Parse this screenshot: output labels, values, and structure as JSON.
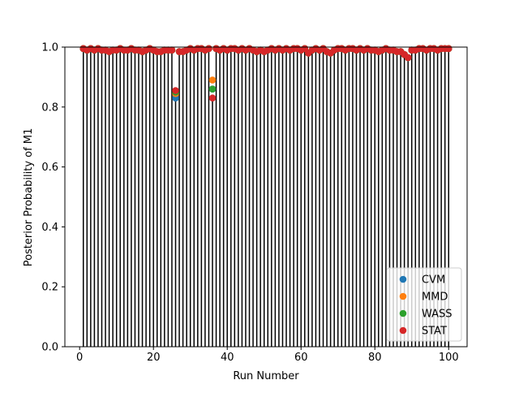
{
  "chart_data": {
    "type": "scatter",
    "xlabel": "Run Number",
    "ylabel": "Posterior Probability of M1",
    "xlim": [
      -4,
      105
    ],
    "ylim": [
      0.0,
      1.0
    ],
    "x_ticks": [
      0,
      20,
      40,
      60,
      80,
      100
    ],
    "y_ticks": [
      0.0,
      0.2,
      0.4,
      0.6,
      0.8,
      1.0
    ],
    "grid": false,
    "legend_position": "lower-right",
    "stems": "black vertical line from 0 to each run's value, one per run (1-100)",
    "x": [
      1,
      2,
      3,
      4,
      5,
      6,
      7,
      8,
      9,
      10,
      11,
      12,
      13,
      14,
      15,
      16,
      17,
      18,
      19,
      20,
      21,
      22,
      23,
      24,
      25,
      26,
      27,
      28,
      29,
      30,
      31,
      32,
      33,
      34,
      35,
      36,
      37,
      38,
      39,
      40,
      41,
      42,
      43,
      44,
      45,
      46,
      47,
      48,
      49,
      50,
      51,
      52,
      53,
      54,
      55,
      56,
      57,
      58,
      59,
      60,
      61,
      62,
      63,
      64,
      65,
      66,
      67,
      68,
      69,
      70,
      71,
      72,
      73,
      74,
      75,
      76,
      77,
      78,
      79,
      80,
      81,
      82,
      83,
      84,
      85,
      86,
      87,
      88,
      89,
      90,
      91,
      92,
      93,
      94,
      95,
      96,
      97,
      98,
      99,
      100
    ],
    "series": [
      {
        "name": "CVM",
        "color": "#1f77b4",
        "values": [
          0.995,
          0.99,
          0.995,
          0.99,
          0.995,
          0.99,
          0.99,
          0.985,
          0.99,
          0.99,
          0.995,
          0.99,
          0.99,
          0.995,
          0.99,
          0.99,
          0.985,
          0.99,
          0.995,
          0.99,
          0.985,
          0.985,
          0.99,
          0.99,
          0.99,
          0.83,
          0.985,
          0.985,
          0.99,
          0.995,
          0.99,
          0.995,
          0.995,
          0.99,
          0.995,
          0.86,
          0.995,
          0.99,
          0.995,
          0.99,
          0.995,
          0.995,
          0.99,
          0.995,
          0.99,
          0.995,
          0.99,
          0.985,
          0.99,
          0.985,
          0.99,
          0.995,
          0.99,
          0.995,
          0.99,
          0.995,
          0.99,
          0.995,
          0.995,
          0.99,
          0.995,
          0.98,
          0.99,
          0.995,
          0.99,
          0.995,
          0.985,
          0.98,
          0.99,
          0.995,
          0.995,
          0.99,
          0.995,
          0.995,
          0.99,
          0.995,
          0.99,
          0.995,
          0.99,
          0.99,
          0.985,
          0.99,
          0.995,
          0.99,
          0.99,
          0.985,
          0.985,
          0.975,
          0.965,
          0.99,
          0.99,
          0.995,
          0.995,
          0.99,
          0.995,
          0.995,
          0.99,
          0.995,
          0.995,
          0.995
        ]
      },
      {
        "name": "MMD",
        "color": "#ff7f0e",
        "values": [
          0.995,
          0.99,
          0.995,
          0.99,
          0.995,
          0.99,
          0.99,
          0.985,
          0.99,
          0.99,
          0.995,
          0.99,
          0.99,
          0.995,
          0.99,
          0.99,
          0.985,
          0.99,
          0.995,
          0.99,
          0.985,
          0.985,
          0.99,
          0.99,
          0.99,
          0.845,
          0.985,
          0.985,
          0.99,
          0.995,
          0.99,
          0.995,
          0.995,
          0.99,
          0.995,
          0.89,
          0.995,
          0.99,
          0.995,
          0.99,
          0.995,
          0.995,
          0.99,
          0.995,
          0.99,
          0.995,
          0.99,
          0.985,
          0.99,
          0.985,
          0.99,
          0.995,
          0.99,
          0.995,
          0.99,
          0.995,
          0.99,
          0.995,
          0.995,
          0.99,
          0.995,
          0.98,
          0.99,
          0.995,
          0.99,
          0.995,
          0.985,
          0.98,
          0.99,
          0.995,
          0.995,
          0.99,
          0.995,
          0.995,
          0.99,
          0.995,
          0.99,
          0.995,
          0.99,
          0.99,
          0.985,
          0.99,
          0.995,
          0.99,
          0.99,
          0.985,
          0.985,
          0.975,
          0.965,
          0.99,
          0.99,
          0.995,
          0.995,
          0.99,
          0.995,
          0.995,
          0.99,
          0.995,
          0.995,
          0.995
        ]
      },
      {
        "name": "WASS",
        "color": "#2ca02c",
        "values": [
          0.995,
          0.99,
          0.995,
          0.99,
          0.995,
          0.99,
          0.99,
          0.985,
          0.99,
          0.99,
          0.995,
          0.99,
          0.99,
          0.995,
          0.99,
          0.99,
          0.985,
          0.99,
          0.995,
          0.99,
          0.985,
          0.985,
          0.99,
          0.99,
          0.99,
          0.85,
          0.985,
          0.985,
          0.99,
          0.995,
          0.99,
          0.995,
          0.995,
          0.99,
          0.995,
          0.86,
          0.995,
          0.99,
          0.995,
          0.99,
          0.995,
          0.995,
          0.99,
          0.995,
          0.99,
          0.995,
          0.99,
          0.985,
          0.99,
          0.985,
          0.99,
          0.995,
          0.99,
          0.995,
          0.99,
          0.995,
          0.99,
          0.995,
          0.995,
          0.99,
          0.995,
          0.98,
          0.99,
          0.995,
          0.99,
          0.995,
          0.985,
          0.98,
          0.99,
          0.995,
          0.995,
          0.99,
          0.995,
          0.995,
          0.99,
          0.995,
          0.99,
          0.995,
          0.99,
          0.99,
          0.985,
          0.99,
          0.995,
          0.99,
          0.99,
          0.985,
          0.985,
          0.975,
          0.965,
          0.99,
          0.99,
          0.995,
          0.995,
          0.99,
          0.995,
          0.995,
          0.99,
          0.995,
          0.995,
          0.995
        ]
      },
      {
        "name": "STAT",
        "color": "#d62728",
        "values": [
          0.995,
          0.99,
          0.995,
          0.99,
          0.995,
          0.99,
          0.99,
          0.985,
          0.99,
          0.99,
          0.995,
          0.99,
          0.99,
          0.995,
          0.99,
          0.99,
          0.985,
          0.99,
          0.995,
          0.99,
          0.985,
          0.985,
          0.99,
          0.99,
          0.99,
          0.855,
          0.985,
          0.985,
          0.99,
          0.995,
          0.99,
          0.995,
          0.995,
          0.99,
          0.995,
          0.83,
          0.995,
          0.99,
          0.995,
          0.99,
          0.995,
          0.995,
          0.99,
          0.995,
          0.99,
          0.995,
          0.99,
          0.985,
          0.99,
          0.985,
          0.99,
          0.995,
          0.99,
          0.995,
          0.99,
          0.995,
          0.99,
          0.995,
          0.995,
          0.99,
          0.995,
          0.98,
          0.99,
          0.995,
          0.99,
          0.995,
          0.985,
          0.98,
          0.99,
          0.995,
          0.995,
          0.99,
          0.995,
          0.995,
          0.99,
          0.995,
          0.99,
          0.995,
          0.99,
          0.99,
          0.985,
          0.99,
          0.995,
          0.99,
          0.99,
          0.985,
          0.985,
          0.975,
          0.965,
          0.99,
          0.99,
          0.995,
          0.995,
          0.99,
          0.995,
          0.995,
          0.99,
          0.995,
          0.995,
          0.995
        ]
      }
    ]
  }
}
